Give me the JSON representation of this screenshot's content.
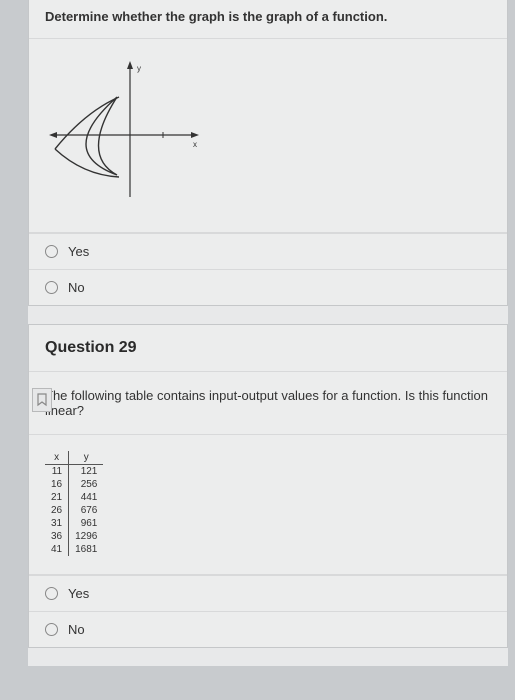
{
  "q28": {
    "prompt": "Determine whether the graph is the graph of a function.",
    "options": [
      "Yes",
      "No"
    ],
    "graph": {
      "x_label": "x",
      "y_label": "y",
      "axis_color": "#333333",
      "curve_color": "#333333"
    }
  },
  "q29": {
    "title": "Question 29",
    "prompt": "The following table contains input-output values for a function. Is this function linear?",
    "table": {
      "headers": [
        "x",
        "y"
      ],
      "rows": [
        [
          "11",
          "121"
        ],
        [
          "16",
          "256"
        ],
        [
          "21",
          "441"
        ],
        [
          "26",
          "676"
        ],
        [
          "31",
          "961"
        ],
        [
          "36",
          "1296"
        ],
        [
          "41",
          "1681"
        ]
      ]
    },
    "options": [
      "Yes",
      "No"
    ]
  },
  "style": {
    "page_bg": "#c8cbce",
    "card_bg": "#eceded",
    "border_color": "#c5c7c9",
    "text_color": "#333333"
  }
}
